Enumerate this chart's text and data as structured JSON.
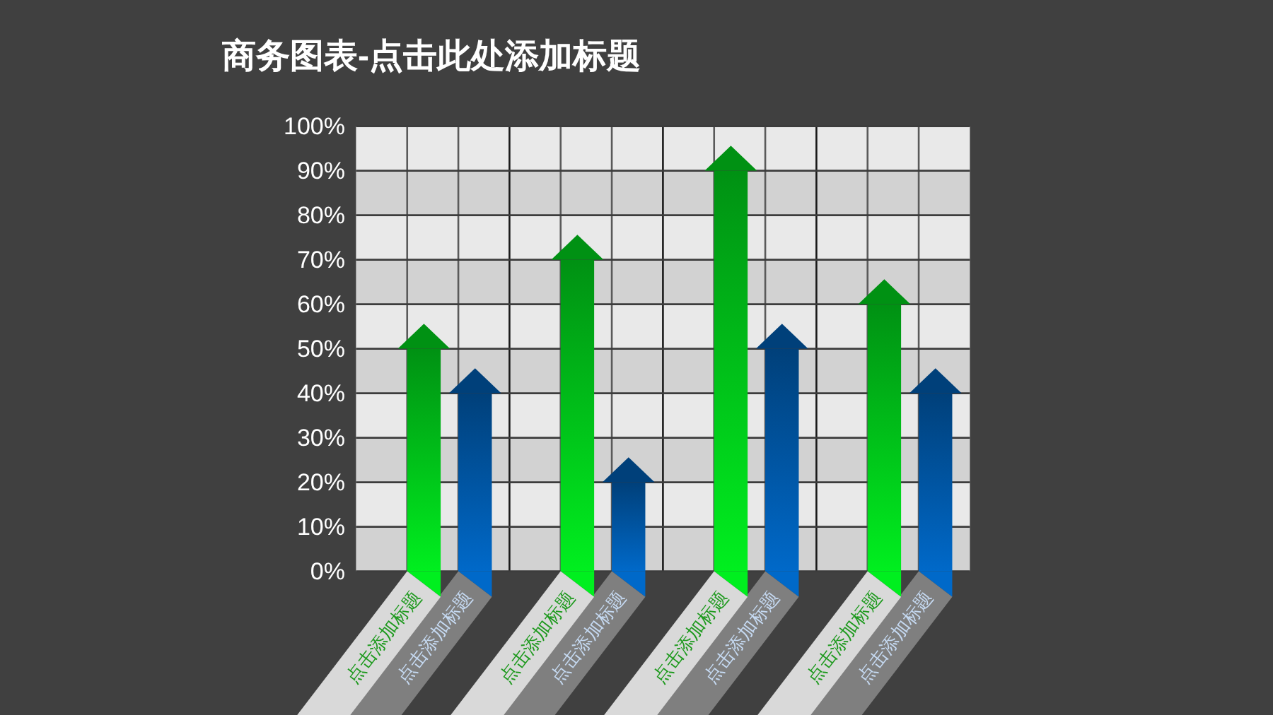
{
  "chart_data": {
    "type": "bar",
    "title": "商务图表-点击此处添加标题",
    "categories": [
      "点击添加标题",
      "点击添加标题",
      "点击添加标题",
      "点击添加标题",
      "点击添加标题",
      "点击添加标题",
      "点击添加标题",
      "点击添加标题"
    ],
    "values": [
      50,
      40,
      70,
      20,
      90,
      50,
      60,
      40
    ],
    "colors": [
      "#00c81a",
      "#0058a8",
      "#00c81a",
      "#0058a8",
      "#00c81a",
      "#0058a8",
      "#00c81a",
      "#0058a8"
    ],
    "ylim": [
      0,
      100
    ],
    "yticks": [
      {
        "value": 0,
        "label": "0%"
      },
      {
        "value": 10,
        "label": "10%"
      },
      {
        "value": 20,
        "label": "20%"
      },
      {
        "value": 30,
        "label": "30%"
      },
      {
        "value": 40,
        "label": "40%"
      },
      {
        "value": 50,
        "label": "50%"
      },
      {
        "value": 60,
        "label": "60%"
      },
      {
        "value": 70,
        "label": "70%"
      },
      {
        "value": 80,
        "label": "80%"
      },
      {
        "value": 90,
        "label": "90%"
      },
      {
        "value": 100,
        "label": "100%"
      }
    ],
    "grid": true
  }
}
